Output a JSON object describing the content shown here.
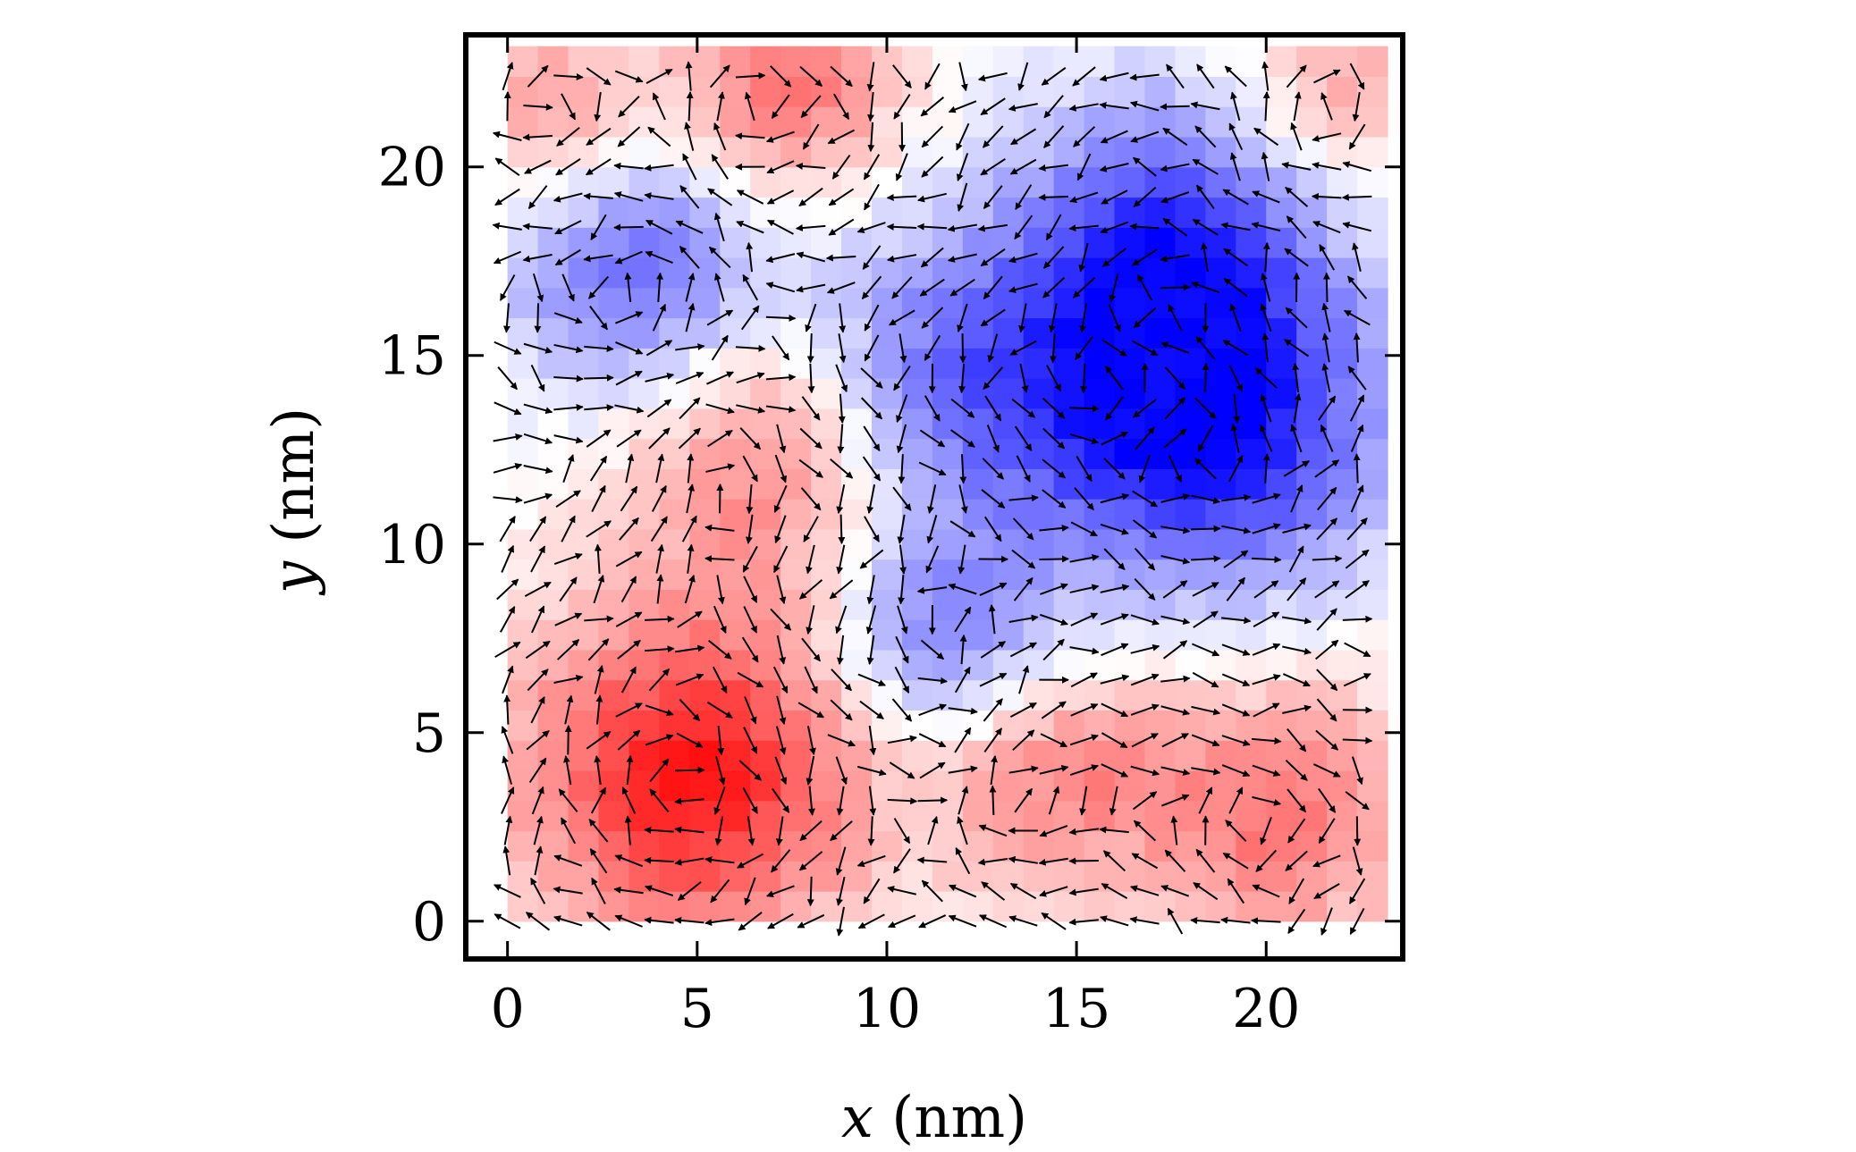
{
  "chart_data": {
    "type": "heatmap",
    "plot_style": "colormap with overlaid vector field (quiver)",
    "title": "",
    "xlabel_var": "x",
    "xlabel_unit": " (nm)",
    "ylabel_var": "y",
    "ylabel_unit": " (nm)",
    "xlim": [
      -1.1,
      23.6
    ],
    "ylim": [
      -1.0,
      23.5
    ],
    "x_ticks": [
      0,
      5,
      10,
      15,
      20
    ],
    "y_ticks": [
      0,
      5,
      10,
      15,
      20
    ],
    "x_tick_labels": [
      "0",
      "5",
      "10",
      "15",
      "20"
    ],
    "y_tick_labels": [
      "0",
      "5",
      "10",
      "15",
      "20"
    ],
    "grid": false,
    "legend": "none",
    "colormap": "bwr",
    "colormap_colors": {
      "negative": "#0000ff",
      "zero": "#ffffff",
      "positive": "#ff0000"
    },
    "grid_spacing_nm": 0.8,
    "grid_extent_nm": [
      0,
      22.4
    ],
    "field_range": [
      -1,
      1
    ],
    "field_lobes": [
      {
        "x": 4.5,
        "y": 3.5,
        "amplitude": 0.9,
        "sigma": 3.2
      },
      {
        "x": 18.0,
        "y": 13.0,
        "amplitude": -1.0,
        "sigma": 3.2
      },
      {
        "x": 3.0,
        "y": 17.0,
        "amplitude": -0.6,
        "sigma": 2.4
      },
      {
        "x": 11.5,
        "y": 14.0,
        "amplitude": -0.55,
        "sigma": 3.0
      },
      {
        "x": 11.0,
        "y": 7.0,
        "amplitude": -0.5,
        "sigma": 2.0
      },
      {
        "x": 7.0,
        "y": 21.5,
        "amplitude": 0.55,
        "sigma": 2.0
      },
      {
        "x": 6.5,
        "y": 12.0,
        "amplitude": 0.5,
        "sigma": 2.5
      },
      {
        "x": 20.0,
        "y": 2.5,
        "amplitude": 0.55,
        "sigma": 2.6
      },
      {
        "x": 14.0,
        "y": 3.5,
        "amplitude": 0.45,
        "sigma": 2.2
      },
      {
        "x": 1.0,
        "y": 21.0,
        "amplitude": 0.4,
        "sigma": 2.0
      },
      {
        "x": 17.0,
        "y": 18.0,
        "amplitude": -0.6,
        "sigma": 2.6
      },
      {
        "x": 21.5,
        "y": 21.5,
        "amplitude": 0.35,
        "sigma": 1.8
      }
    ],
    "arrow_color": "#000000"
  }
}
